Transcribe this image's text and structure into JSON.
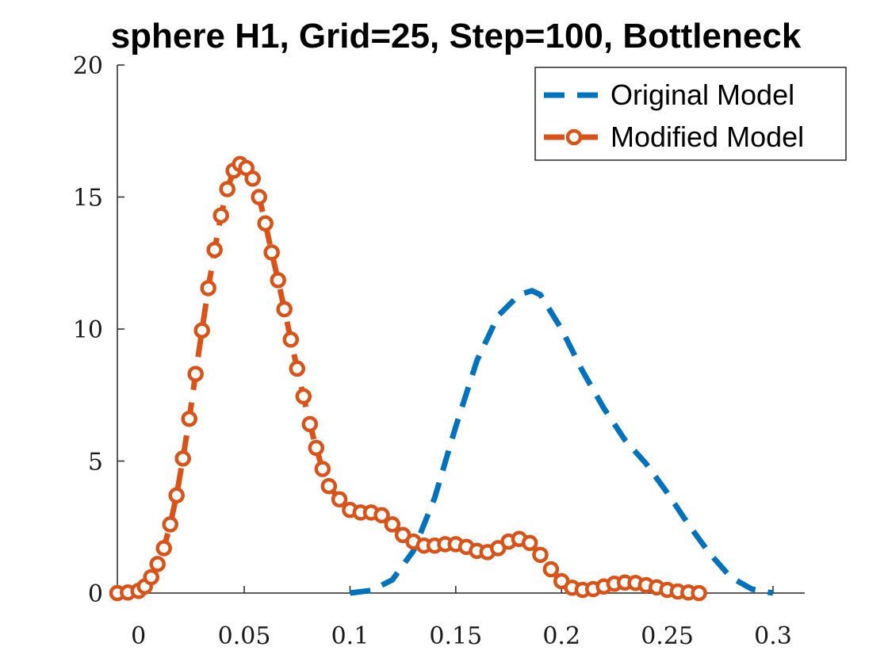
{
  "chart_data": {
    "type": "line",
    "title": "sphere H1, Grid=25, Step=100, Bottleneck",
    "xlabel": "",
    "ylabel": "",
    "xlim": [
      -0.01,
      0.315
    ],
    "ylim": [
      0,
      20
    ],
    "x_ticks": [
      0,
      0.05,
      0.1,
      0.15,
      0.2,
      0.25,
      0.3
    ],
    "x_tick_labels": [
      "0",
      "0.05",
      "0.1",
      "0.15",
      "0.2",
      "0.25",
      "0.3"
    ],
    "y_ticks": [
      0,
      5,
      10,
      15,
      20
    ],
    "y_tick_labels": [
      "0",
      "5",
      "10",
      "15",
      "20"
    ],
    "grid": false,
    "legend_position": "top-right",
    "series": [
      {
        "name": "Original Model",
        "color": "#0072BD",
        "line_style": "dashed",
        "marker": "none",
        "x": [
          0.1,
          0.11,
          0.12,
          0.13,
          0.14,
          0.15,
          0.16,
          0.17,
          0.18,
          0.186,
          0.19,
          0.2,
          0.21,
          0.22,
          0.23,
          0.24,
          0.25,
          0.26,
          0.27,
          0.28,
          0.29,
          0.3
        ],
        "y": [
          0,
          0.1,
          0.5,
          1.6,
          3.6,
          6.3,
          8.8,
          10.5,
          11.3,
          11.45,
          11.3,
          10.0,
          8.4,
          7.0,
          5.8,
          4.9,
          3.8,
          2.6,
          1.5,
          0.6,
          0.15,
          0
        ]
      },
      {
        "name": "Modified Model",
        "color": "#D95319",
        "line_style": "dashed",
        "marker": "circle",
        "x": [
          -0.01,
          -0.005,
          0,
          0.003,
          0.006,
          0.009,
          0.012,
          0.015,
          0.018,
          0.021,
          0.024,
          0.027,
          0.03,
          0.033,
          0.036,
          0.039,
          0.042,
          0.045,
          0.048,
          0.051,
          0.054,
          0.057,
          0.06,
          0.063,
          0.066,
          0.069,
          0.072,
          0.075,
          0.078,
          0.081,
          0.084,
          0.087,
          0.09,
          0.095,
          0.1,
          0.105,
          0.11,
          0.115,
          0.12,
          0.125,
          0.13,
          0.135,
          0.14,
          0.145,
          0.15,
          0.155,
          0.16,
          0.165,
          0.17,
          0.175,
          0.18,
          0.185,
          0.19,
          0.195,
          0.2,
          0.205,
          0.21,
          0.215,
          0.22,
          0.225,
          0.23,
          0.235,
          0.24,
          0.245,
          0.25,
          0.255,
          0.26,
          0.265
        ],
        "y": [
          0,
          0.02,
          0.08,
          0.25,
          0.6,
          1.1,
          1.7,
          2.6,
          3.7,
          5.1,
          6.6,
          8.3,
          9.95,
          11.55,
          13.0,
          14.3,
          15.3,
          16.0,
          16.25,
          16.1,
          15.7,
          15.0,
          14.0,
          12.9,
          11.85,
          10.75,
          9.6,
          8.5,
          7.45,
          6.4,
          5.5,
          4.7,
          4.05,
          3.55,
          3.15,
          3.05,
          3.05,
          2.95,
          2.6,
          2.2,
          1.95,
          1.8,
          1.8,
          1.85,
          1.85,
          1.75,
          1.6,
          1.55,
          1.7,
          1.95,
          2.05,
          1.9,
          1.45,
          0.9,
          0.45,
          0.2,
          0.12,
          0.15,
          0.25,
          0.35,
          0.4,
          0.38,
          0.3,
          0.22,
          0.12,
          0.06,
          0.02,
          0
        ]
      }
    ]
  }
}
